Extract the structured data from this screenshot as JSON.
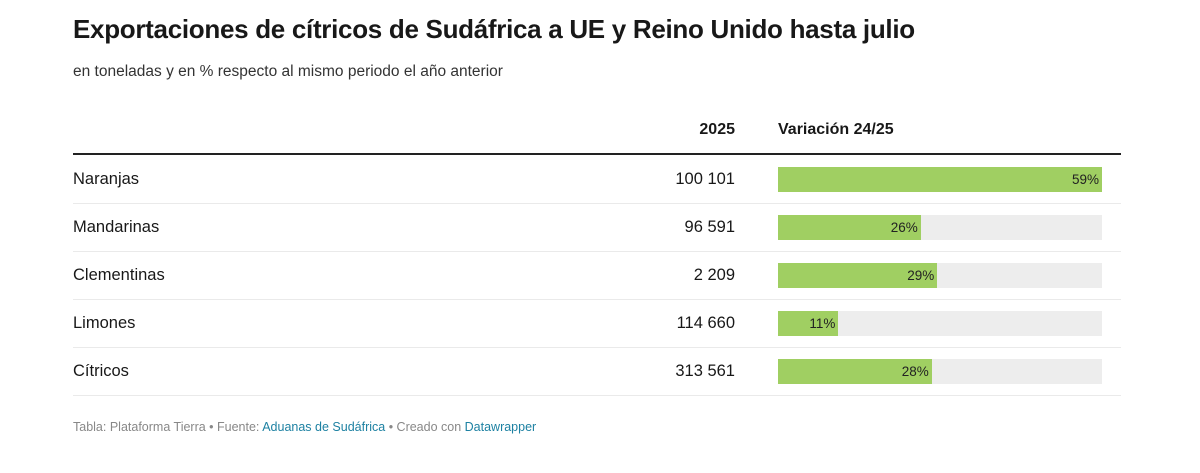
{
  "title": "Exportaciones de cítricos de Sudáfrica a UE y Reino Unido hasta julio",
  "subtitle": "en toneladas y en % respecto al mismo periodo el año anterior",
  "chart_data": {
    "type": "table",
    "columns": [
      "",
      "2025",
      "Variación 24/25"
    ],
    "bar_color": "#a0cf62",
    "track_color": "#ededed",
    "bar_max": 59,
    "rows": [
      {
        "name": "Naranjas",
        "value": "100 101",
        "variation": 59,
        "variation_label": "59%"
      },
      {
        "name": "Mandarinas",
        "value": "96 591",
        "variation": 26,
        "variation_label": "26%"
      },
      {
        "name": "Clementinas",
        "value": "2 209",
        "variation": 29,
        "variation_label": "29%"
      },
      {
        "name": "Limones",
        "value": "114 660",
        "variation": 11,
        "variation_label": "11%"
      },
      {
        "name": "Cítricos",
        "value": "313 561",
        "variation": 28,
        "variation_label": "28%"
      }
    ]
  },
  "footer": {
    "prefix": "Tabla: Plataforma Tierra • Fuente: ",
    "source": "Aduanas de Sudáfrica",
    "mid": " • Creado con ",
    "tool": "Datawrapper"
  }
}
